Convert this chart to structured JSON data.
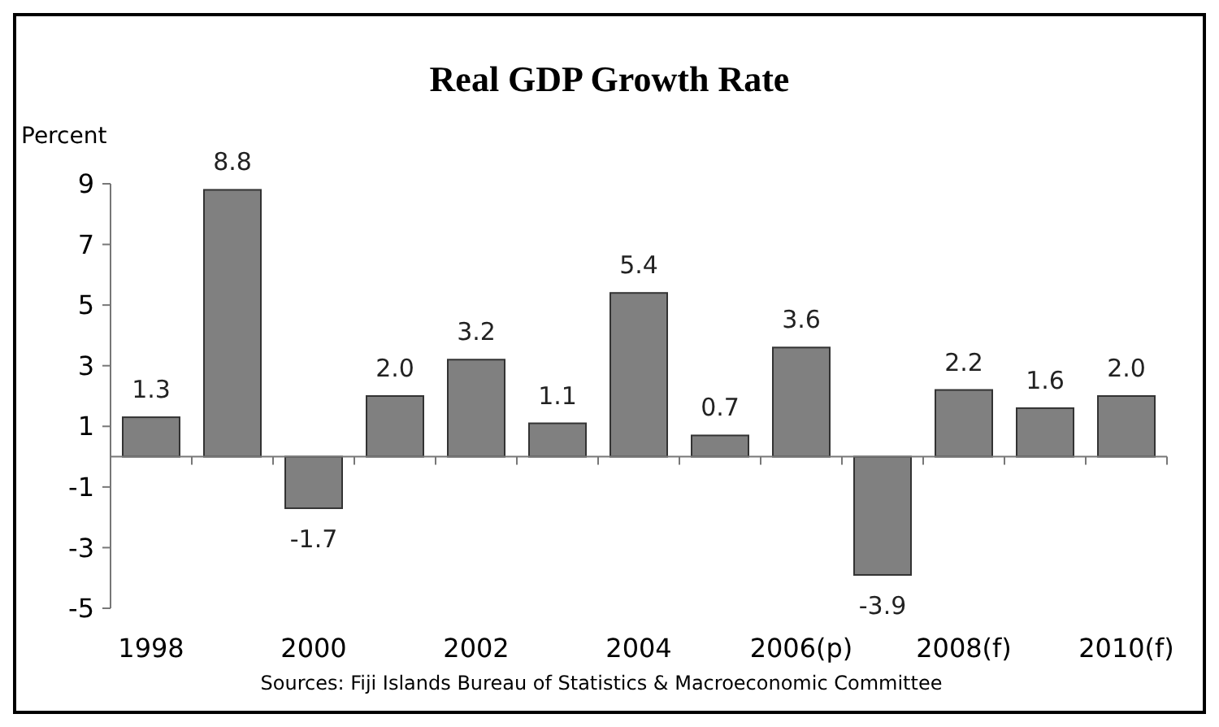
{
  "chart_data": {
    "type": "bar",
    "title": "Real GDP Growth Rate",
    "ylabel": "Percent",
    "categories": [
      "1998",
      null,
      "2000",
      null,
      "2002",
      null,
      "2004",
      null,
      "2006(p)",
      null,
      "2008(f)",
      null,
      "2010(f)"
    ],
    "values": [
      1.3,
      8.8,
      -1.7,
      2.0,
      3.2,
      1.1,
      5.4,
      0.7,
      3.6,
      -3.9,
      2.2,
      1.6,
      2.0
    ],
    "value_labels": [
      "1.3",
      "8.8",
      "-1.7",
      "2.0",
      "3.2",
      "1.1",
      "5.4",
      "0.7",
      "3.6",
      "-3.9",
      "2.2",
      "1.6",
      "2.0"
    ],
    "color": "#808080",
    "ylim": [
      -5,
      9
    ],
    "yticks": [
      -5,
      -3,
      -1,
      1,
      3,
      5,
      7,
      9
    ],
    "grid": false,
    "annotations": [
      "Sources:  Fiji Islands Bureau of Statistics & Macroeconomic Committee"
    ]
  }
}
